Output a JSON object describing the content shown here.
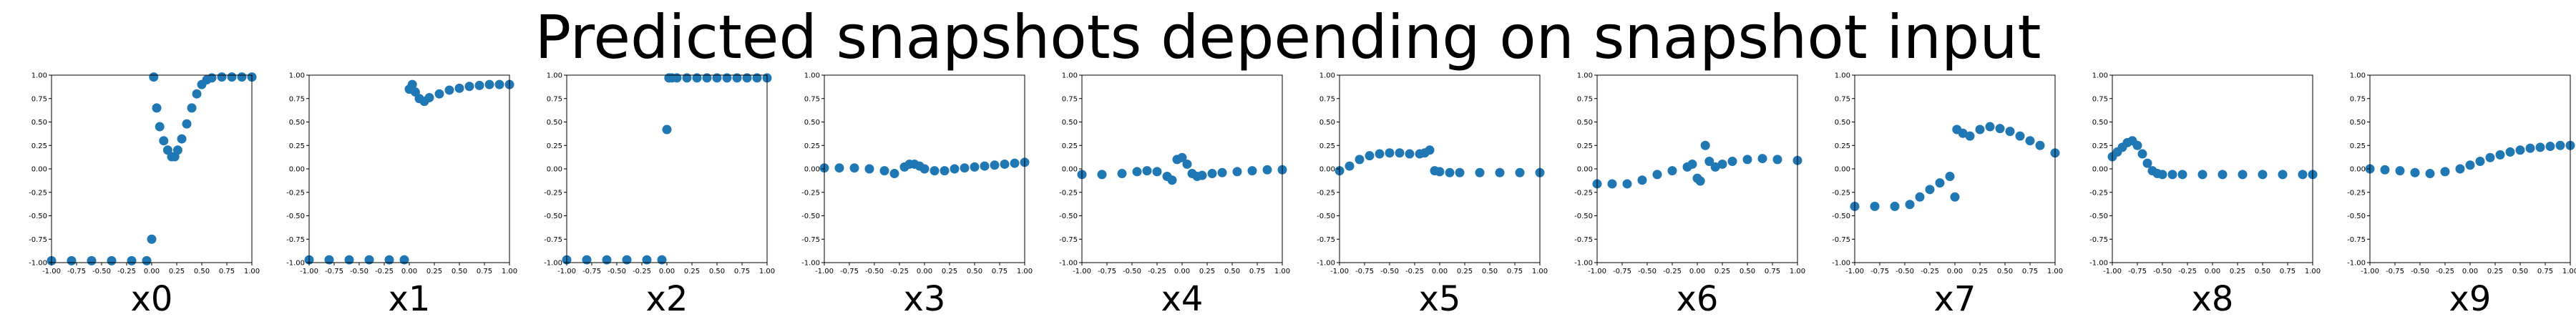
{
  "figure": {
    "title": "Predicted snapshots depending on snapshot input"
  },
  "chart_data": [
    {
      "type": "scatter",
      "xlabel": "x0",
      "xlim": [
        -1,
        1
      ],
      "ylim": [
        -1,
        1
      ],
      "xticks": [
        "-1.00",
        "-0.75",
        "-0.50",
        "-0.25",
        "0.00",
        "0.25",
        "0.50",
        "0.75",
        "1.00"
      ],
      "yticks": [
        "-1.00",
        "-0.75",
        "-0.50",
        "-0.25",
        "0.00",
        "0.25",
        "0.50",
        "0.75",
        "1.00"
      ],
      "marker_color": "#1f77b4",
      "x": [
        -1.0,
        -0.8,
        -0.6,
        -0.4,
        -0.2,
        -0.05,
        0.0,
        0.02,
        0.05,
        0.08,
        0.12,
        0.16,
        0.2,
        0.23,
        0.26,
        0.3,
        0.35,
        0.4,
        0.45,
        0.5,
        0.55,
        0.6,
        0.7,
        0.8,
        0.9,
        1.0
      ],
      "y": [
        -0.98,
        -0.98,
        -0.98,
        -0.98,
        -0.98,
        -0.98,
        -0.75,
        0.98,
        0.65,
        0.45,
        0.3,
        0.2,
        0.13,
        0.13,
        0.2,
        0.32,
        0.48,
        0.65,
        0.8,
        0.9,
        0.95,
        0.97,
        0.98,
        0.98,
        0.98,
        0.98
      ]
    },
    {
      "type": "scatter",
      "xlabel": "x1",
      "xlim": [
        -1,
        1
      ],
      "ylim": [
        -1,
        1
      ],
      "xticks": [
        "-1.00",
        "-0.75",
        "-0.50",
        "-0.25",
        "0.00",
        "0.25",
        "0.50",
        "0.75",
        "1.00"
      ],
      "yticks": [
        "-1.00",
        "-0.75",
        "-0.50",
        "-0.25",
        "0.00",
        "0.25",
        "0.50",
        "0.75",
        "1.00"
      ],
      "marker_color": "#1f77b4",
      "x": [
        -1.0,
        -0.8,
        -0.6,
        -0.4,
        -0.2,
        -0.05,
        0.0,
        0.03,
        0.06,
        0.1,
        0.15,
        0.2,
        0.3,
        0.4,
        0.5,
        0.6,
        0.7,
        0.8,
        0.9,
        1.0
      ],
      "y": [
        -0.97,
        -0.97,
        -0.97,
        -0.97,
        -0.97,
        -0.97,
        0.85,
        0.9,
        0.82,
        0.75,
        0.72,
        0.76,
        0.8,
        0.84,
        0.86,
        0.88,
        0.89,
        0.9,
        0.9,
        0.9
      ]
    },
    {
      "type": "scatter",
      "xlabel": "x2",
      "xlim": [
        -1,
        1
      ],
      "ylim": [
        -1,
        1
      ],
      "xticks": [
        "-1.00",
        "-0.75",
        "-0.50",
        "-0.25",
        "0.00",
        "0.25",
        "0.50",
        "0.75",
        "1.00"
      ],
      "yticks": [
        "-1.00",
        "-0.75",
        "-0.50",
        "-0.25",
        "0.00",
        "0.25",
        "0.50",
        "0.75",
        "1.00"
      ],
      "marker_color": "#1f77b4",
      "x": [
        -1.0,
        -0.8,
        -0.6,
        -0.4,
        -0.2,
        -0.05,
        0.0,
        0.02,
        0.05,
        0.1,
        0.2,
        0.3,
        0.4,
        0.5,
        0.6,
        0.7,
        0.8,
        0.9,
        1.0
      ],
      "y": [
        -0.97,
        -0.97,
        -0.97,
        -0.97,
        -0.97,
        -0.97,
        0.42,
        0.97,
        0.97,
        0.97,
        0.97,
        0.97,
        0.97,
        0.97,
        0.97,
        0.97,
        0.97,
        0.97,
        0.97
      ]
    },
    {
      "type": "scatter",
      "xlabel": "x3",
      "xlim": [
        -1,
        1
      ],
      "ylim": [
        -1,
        1
      ],
      "xticks": [
        "-1.00",
        "-0.75",
        "-0.50",
        "-0.25",
        "0.00",
        "0.25",
        "0.50",
        "0.75",
        "1.00"
      ],
      "yticks": [
        "-1.00",
        "-0.75",
        "-0.50",
        "-0.25",
        "0.00",
        "0.25",
        "0.50",
        "0.75",
        "1.00"
      ],
      "marker_color": "#1f77b4",
      "x": [
        -1.0,
        -0.85,
        -0.7,
        -0.55,
        -0.4,
        -0.3,
        -0.2,
        -0.15,
        -0.1,
        -0.05,
        0.0,
        0.1,
        0.2,
        0.3,
        0.4,
        0.5,
        0.6,
        0.7,
        0.8,
        0.9,
        1.0
      ],
      "y": [
        0.01,
        0.01,
        0.01,
        0.0,
        -0.02,
        -0.05,
        0.02,
        0.05,
        0.05,
        0.03,
        0.0,
        -0.02,
        -0.02,
        0.0,
        0.01,
        0.02,
        0.03,
        0.04,
        0.05,
        0.06,
        0.07
      ]
    },
    {
      "type": "scatter",
      "xlabel": "x4",
      "xlim": [
        -1,
        1
      ],
      "ylim": [
        -1,
        1
      ],
      "xticks": [
        "-1.00",
        "-0.75",
        "-0.50",
        "-0.25",
        "0.00",
        "0.25",
        "0.50",
        "0.75",
        "1.00"
      ],
      "yticks": [
        "-1.00",
        "-0.75",
        "-0.50",
        "-0.25",
        "0.00",
        "0.25",
        "0.50",
        "0.75",
        "1.00"
      ],
      "marker_color": "#1f77b4",
      "x": [
        -1.0,
        -0.8,
        -0.6,
        -0.45,
        -0.35,
        -0.25,
        -0.15,
        -0.1,
        -0.05,
        0.0,
        0.05,
        0.1,
        0.15,
        0.2,
        0.3,
        0.4,
        0.55,
        0.7,
        0.85,
        1.0
      ],
      "y": [
        -0.06,
        -0.06,
        -0.05,
        -0.03,
        -0.02,
        -0.03,
        -0.08,
        -0.12,
        0.1,
        0.12,
        0.05,
        -0.05,
        -0.08,
        -0.07,
        -0.05,
        -0.04,
        -0.03,
        -0.02,
        -0.01,
        -0.01
      ]
    },
    {
      "type": "scatter",
      "xlabel": "x5",
      "xlim": [
        -1,
        1
      ],
      "ylim": [
        -1,
        1
      ],
      "xticks": [
        "-1.00",
        "-0.75",
        "-0.50",
        "-0.25",
        "0.00",
        "0.25",
        "0.50",
        "0.75",
        "1.00"
      ],
      "yticks": [
        "-1.00",
        "-0.75",
        "-0.50",
        "-0.25",
        "0.00",
        "0.25",
        "0.50",
        "0.75",
        "1.00"
      ],
      "marker_color": "#1f77b4",
      "x": [
        -1.0,
        -0.9,
        -0.8,
        -0.7,
        -0.6,
        -0.5,
        -0.4,
        -0.3,
        -0.2,
        -0.15,
        -0.1,
        -0.05,
        0.0,
        0.1,
        0.2,
        0.4,
        0.6,
        0.8,
        1.0
      ],
      "y": [
        -0.02,
        0.03,
        0.1,
        0.14,
        0.16,
        0.17,
        0.17,
        0.16,
        0.16,
        0.17,
        0.2,
        -0.02,
        -0.03,
        -0.04,
        -0.04,
        -0.04,
        -0.04,
        -0.04,
        -0.04
      ]
    },
    {
      "type": "scatter",
      "xlabel": "x6",
      "xlim": [
        -1,
        1
      ],
      "ylim": [
        -1,
        1
      ],
      "xticks": [
        "-1.00",
        "-0.75",
        "-0.50",
        "-0.25",
        "0.00",
        "0.25",
        "0.50",
        "0.75",
        "1.00"
      ],
      "yticks": [
        "-1.00",
        "-0.75",
        "-0.50",
        "-0.25",
        "0.00",
        "0.25",
        "0.50",
        "0.75",
        "1.00"
      ],
      "marker_color": "#1f77b4",
      "x": [
        -1.0,
        -0.85,
        -0.7,
        -0.55,
        -0.4,
        -0.25,
        -0.1,
        -0.05,
        0.0,
        0.03,
        0.08,
        0.12,
        0.18,
        0.25,
        0.35,
        0.5,
        0.65,
        0.8,
        1.0
      ],
      "y": [
        -0.16,
        -0.16,
        -0.16,
        -0.12,
        -0.06,
        -0.02,
        0.02,
        0.05,
        -0.1,
        -0.13,
        0.25,
        0.08,
        0.02,
        0.05,
        0.08,
        0.1,
        0.11,
        0.1,
        0.09
      ]
    },
    {
      "type": "scatter",
      "xlabel": "x7",
      "xlim": [
        -1,
        1
      ],
      "ylim": [
        -1,
        1
      ],
      "xticks": [
        "-1.00",
        "-0.75",
        "-0.50",
        "-0.25",
        "0.00",
        "0.25",
        "0.50",
        "0.75",
        "1.00"
      ],
      "yticks": [
        "-1.00",
        "-0.75",
        "-0.50",
        "-0.25",
        "0.00",
        "0.25",
        "0.50",
        "0.75",
        "1.00"
      ],
      "marker_color": "#1f77b4",
      "x": [
        -1.0,
        -0.8,
        -0.6,
        -0.45,
        -0.35,
        -0.25,
        -0.15,
        -0.05,
        0.0,
        0.02,
        0.08,
        0.15,
        0.25,
        0.35,
        0.45,
        0.55,
        0.65,
        0.75,
        0.85,
        1.0
      ],
      "y": [
        -0.4,
        -0.4,
        -0.4,
        -0.38,
        -0.3,
        -0.22,
        -0.15,
        -0.08,
        -0.3,
        0.42,
        0.38,
        0.35,
        0.42,
        0.45,
        0.43,
        0.4,
        0.35,
        0.3,
        0.25,
        0.17
      ]
    },
    {
      "type": "scatter",
      "xlabel": "x8",
      "xlim": [
        -1,
        1
      ],
      "ylim": [
        -1,
        1
      ],
      "xticks": [
        "-1.00",
        "-0.75",
        "-0.50",
        "-0.25",
        "0.00",
        "0.25",
        "0.50",
        "0.75",
        "1.00"
      ],
      "yticks": [
        "-1.00",
        "-0.75",
        "-0.50",
        "-0.25",
        "0.00",
        "0.25",
        "0.50",
        "0.75",
        "1.00"
      ],
      "marker_color": "#1f77b4",
      "x": [
        -1.0,
        -0.95,
        -0.9,
        -0.85,
        -0.8,
        -0.75,
        -0.7,
        -0.65,
        -0.6,
        -0.55,
        -0.5,
        -0.4,
        -0.3,
        -0.1,
        0.1,
        0.3,
        0.5,
        0.7,
        0.9,
        1.0
      ],
      "y": [
        0.13,
        0.18,
        0.23,
        0.28,
        0.3,
        0.25,
        0.16,
        0.06,
        -0.02,
        -0.05,
        -0.06,
        -0.06,
        -0.06,
        -0.06,
        -0.06,
        -0.06,
        -0.06,
        -0.06,
        -0.06,
        -0.06
      ]
    },
    {
      "type": "scatter",
      "xlabel": "x9",
      "xlim": [
        -1,
        1
      ],
      "ylim": [
        -1,
        1
      ],
      "xticks": [
        "-1.00",
        "-0.75",
        "-0.50",
        "-0.25",
        "0.00",
        "0.25",
        "0.50",
        "0.75",
        "1.00"
      ],
      "yticks": [
        "-1.00",
        "-0.75",
        "-0.50",
        "-0.25",
        "0.00",
        "0.25",
        "0.50",
        "0.75",
        "1.00"
      ],
      "marker_color": "#1f77b4",
      "x": [
        -1.0,
        -0.85,
        -0.7,
        -0.55,
        -0.4,
        -0.25,
        -0.1,
        0.0,
        0.1,
        0.2,
        0.3,
        0.4,
        0.5,
        0.6,
        0.7,
        0.8,
        0.9,
        1.0
      ],
      "y": [
        0.0,
        -0.01,
        -0.02,
        -0.04,
        -0.05,
        -0.03,
        0.0,
        0.04,
        0.08,
        0.12,
        0.15,
        0.18,
        0.2,
        0.22,
        0.23,
        0.24,
        0.25,
        0.25
      ]
    }
  ]
}
